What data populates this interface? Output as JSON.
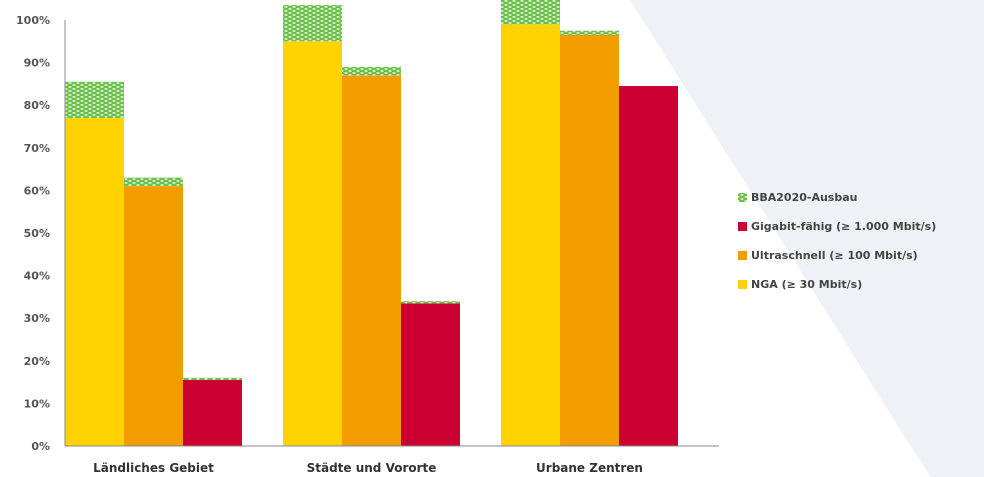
{
  "chart_data": {
    "type": "bar",
    "stacked_overlay": "BBA2020-Ausbau stacked on top of each bar",
    "categories": [
      "Ländliches Gebiet",
      "Städte und Vororte",
      "Urbane Zentren"
    ],
    "series": [
      {
        "name": "NGA (≥ 30 Mbit/s)",
        "values": [
          77,
          95,
          99
        ],
        "color": "#FFD200"
      },
      {
        "name": "Ultraschnell (≥ 100 Mbit/s)",
        "values": [
          61,
          87,
          96.5
        ],
        "color": "#F39C00"
      },
      {
        "name": "Gigabit-fähig (≥ 1.000 Mbit/s)",
        "values": [
          15.5,
          33.5,
          84.5
        ],
        "color": "#CC0033"
      }
    ],
    "overlay": {
      "name": "BBA2020-Ausbau",
      "color": "#6CC04A",
      "values": [
        [
          8.5,
          8.5,
          6
        ],
        [
          2,
          2,
          1
        ],
        [
          0.5,
          0.5,
          0
        ]
      ]
    },
    "legend_order": [
      "BBA2020-Ausbau",
      "Gigabit-fähig (≥ 1.000 Mbit/s)",
      "Ultraschnell (≥ 100 Mbit/s)",
      "NGA (≥ 30 Mbit/s)"
    ],
    "yticks": [
      "0%",
      "10%",
      "20%",
      "30%",
      "40%",
      "50%",
      "60%",
      "70%",
      "80%",
      "90%",
      "100%"
    ],
    "ylim": [
      0,
      100
    ],
    "legend_position": "right",
    "grid": false,
    "background_shape_color": "#EEF2F6"
  }
}
